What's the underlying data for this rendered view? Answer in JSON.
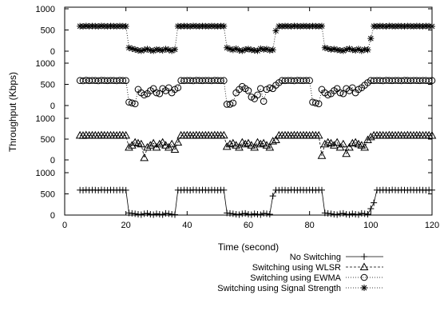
{
  "chart_data": {
    "type": "line",
    "xlabel": "Time (second)",
    "ylabel": "Throughput (Kbps)",
    "xlim": [
      0,
      120
    ],
    "xticks": [
      0,
      20,
      40,
      60,
      80,
      100,
      120
    ],
    "panel_ylim": [
      0,
      1000
    ],
    "panel_yticks": [
      0,
      500,
      1000
    ],
    "grid": false,
    "legend_position": "bottom-right",
    "series": [
      {
        "name": "Switching using Signal Strength",
        "marker": "star",
        "line": "dotted",
        "x": [
          5,
          6,
          7,
          8,
          9,
          10,
          11,
          12,
          13,
          14,
          15,
          16,
          17,
          18,
          19,
          20,
          21,
          22,
          23,
          24,
          25,
          26,
          27,
          28,
          29,
          30,
          31,
          32,
          33,
          34,
          35,
          36,
          37,
          38,
          39,
          40,
          41,
          42,
          43,
          44,
          45,
          46,
          47,
          48,
          49,
          50,
          51,
          52,
          53,
          54,
          55,
          56,
          57,
          58,
          59,
          60,
          61,
          62,
          63,
          64,
          65,
          66,
          67,
          68,
          69,
          70,
          71,
          72,
          73,
          74,
          75,
          76,
          77,
          78,
          79,
          80,
          81,
          82,
          83,
          84,
          85,
          86,
          87,
          88,
          89,
          90,
          91,
          92,
          93,
          94,
          95,
          96,
          97,
          98,
          99,
          100,
          101,
          102,
          103,
          104,
          105,
          106,
          107,
          108,
          109,
          110,
          111,
          112,
          113,
          114,
          115,
          116,
          117,
          118,
          119,
          120
        ],
        "y": [
          590,
          585,
          595,
          588,
          592,
          590,
          586,
          594,
          590,
          588,
          592,
          590,
          587,
          593,
          590,
          588,
          80,
          60,
          40,
          20,
          10,
          30,
          50,
          20,
          10,
          40,
          30,
          20,
          50,
          30,
          10,
          40,
          590,
          588,
          592,
          590,
          586,
          594,
          590,
          588,
          592,
          590,
          587,
          593,
          590,
          588,
          592,
          590,
          80,
          50,
          30,
          60,
          20,
          10,
          40,
          50,
          30,
          20,
          10,
          60,
          40,
          50,
          20,
          30,
          480,
          590,
          588,
          592,
          590,
          586,
          594,
          590,
          588,
          592,
          590,
          587,
          593,
          590,
          588,
          592,
          80,
          60,
          40,
          50,
          30,
          20,
          10,
          40,
          60,
          30,
          20,
          50,
          10,
          40,
          30,
          300,
          590,
          588,
          592,
          590,
          586,
          594,
          590,
          588,
          592,
          590,
          587,
          593,
          590,
          588,
          592,
          590,
          588,
          592,
          590,
          586
        ]
      },
      {
        "name": "Switching using EWMA",
        "marker": "circle",
        "line": "dotted",
        "x": [
          5,
          6,
          7,
          8,
          9,
          10,
          11,
          12,
          13,
          14,
          15,
          16,
          17,
          18,
          19,
          20,
          21,
          22,
          23,
          24,
          25,
          26,
          27,
          28,
          29,
          30,
          31,
          32,
          33,
          34,
          35,
          36,
          37,
          38,
          39,
          40,
          41,
          42,
          43,
          44,
          45,
          46,
          47,
          48,
          49,
          50,
          51,
          52,
          53,
          54,
          55,
          56,
          57,
          58,
          59,
          60,
          61,
          62,
          63,
          64,
          65,
          66,
          67,
          68,
          69,
          70,
          71,
          72,
          73,
          74,
          75,
          76,
          77,
          78,
          79,
          80,
          81,
          82,
          83,
          84,
          85,
          86,
          87,
          88,
          89,
          90,
          91,
          92,
          93,
          94,
          95,
          96,
          97,
          98,
          99,
          100,
          101,
          102,
          103,
          104,
          105,
          106,
          107,
          108,
          109,
          110,
          111,
          112,
          113,
          114,
          115,
          116,
          117,
          118,
          119,
          120
        ],
        "y": [
          590,
          585,
          595,
          588,
          592,
          590,
          586,
          594,
          590,
          588,
          592,
          590,
          587,
          593,
          590,
          588,
          80,
          60,
          40,
          380,
          300,
          250,
          280,
          350,
          400,
          300,
          280,
          400,
          350,
          420,
          300,
          380,
          420,
          590,
          588,
          592,
          590,
          586,
          594,
          590,
          588,
          592,
          590,
          587,
          593,
          590,
          588,
          590,
          30,
          30,
          60,
          300,
          380,
          450,
          400,
          350,
          200,
          160,
          250,
          400,
          100,
          380,
          420,
          400,
          480,
          540,
          590,
          588,
          592,
          590,
          586,
          594,
          590,
          588,
          592,
          590,
          80,
          60,
          40,
          380,
          300,
          250,
          280,
          350,
          400,
          300,
          280,
          400,
          350,
          420,
          300,
          380,
          420,
          480,
          540,
          590,
          588,
          592,
          590,
          586,
          594,
          590,
          588,
          592,
          590,
          587,
          593,
          590,
          588,
          592,
          590,
          588,
          592,
          590,
          586,
          590
        ]
      },
      {
        "name": "Switching using WLSR",
        "marker": "triangle",
        "line": "dashed",
        "x": [
          5,
          6,
          7,
          8,
          9,
          10,
          11,
          12,
          13,
          14,
          15,
          16,
          17,
          18,
          19,
          20,
          21,
          22,
          23,
          24,
          25,
          26,
          27,
          28,
          29,
          30,
          31,
          32,
          33,
          34,
          35,
          36,
          37,
          38,
          39,
          40,
          41,
          42,
          43,
          44,
          45,
          46,
          47,
          48,
          49,
          50,
          51,
          52,
          53,
          54,
          55,
          56,
          57,
          58,
          59,
          60,
          61,
          62,
          63,
          64,
          65,
          66,
          67,
          68,
          69,
          70,
          71,
          72,
          73,
          74,
          75,
          76,
          77,
          78,
          79,
          80,
          81,
          82,
          83,
          84,
          85,
          86,
          87,
          88,
          89,
          90,
          91,
          92,
          93,
          94,
          95,
          96,
          97,
          98,
          99,
          100,
          101,
          102,
          103,
          104,
          105,
          106,
          107,
          108,
          109,
          110,
          111,
          112,
          113,
          114,
          115,
          116,
          117,
          118,
          119,
          120
        ],
        "y": [
          590,
          585,
          595,
          588,
          592,
          590,
          586,
          594,
          590,
          588,
          592,
          590,
          587,
          593,
          590,
          588,
          300,
          350,
          420,
          400,
          380,
          50,
          300,
          350,
          400,
          300,
          380,
          420,
          350,
          300,
          380,
          250,
          420,
          590,
          588,
          592,
          590,
          586,
          594,
          590,
          588,
          592,
          590,
          587,
          593,
          590,
          588,
          592,
          320,
          380,
          400,
          350,
          300,
          420,
          380,
          400,
          350,
          300,
          420,
          380,
          400,
          350,
          300,
          450,
          480,
          590,
          588,
          592,
          590,
          586,
          594,
          590,
          588,
          592,
          590,
          587,
          593,
          590,
          588,
          100,
          380,
          420,
          400,
          350,
          420,
          300,
          380,
          150,
          300,
          400,
          420,
          380,
          350,
          300,
          480,
          550,
          590,
          588,
          592,
          590,
          586,
          594,
          590,
          588,
          592,
          590,
          587,
          593,
          590,
          588,
          592,
          590,
          588,
          592,
          590,
          586
        ]
      },
      {
        "name": "No Switching",
        "marker": "plus",
        "line": "solid",
        "x": [
          5,
          6,
          7,
          8,
          9,
          10,
          11,
          12,
          13,
          14,
          15,
          16,
          17,
          18,
          19,
          20,
          21,
          22,
          23,
          24,
          25,
          26,
          27,
          28,
          29,
          30,
          31,
          32,
          33,
          34,
          35,
          36,
          37,
          38,
          39,
          40,
          41,
          42,
          43,
          44,
          45,
          46,
          47,
          48,
          49,
          50,
          51,
          52,
          53,
          54,
          55,
          56,
          57,
          58,
          59,
          60,
          61,
          62,
          63,
          64,
          65,
          66,
          67,
          68,
          69,
          70,
          71,
          72,
          73,
          74,
          75,
          76,
          77,
          78,
          79,
          80,
          81,
          82,
          83,
          84,
          85,
          86,
          87,
          88,
          89,
          90,
          91,
          92,
          93,
          94,
          95,
          96,
          97,
          98,
          99,
          100,
          101,
          102,
          103,
          104,
          105,
          106,
          107,
          108,
          109,
          110,
          111,
          112,
          113,
          114,
          115,
          116,
          117,
          118,
          119,
          120
        ],
        "y": [
          590,
          585,
          595,
          588,
          592,
          590,
          586,
          594,
          590,
          588,
          592,
          590,
          587,
          593,
          590,
          588,
          50,
          40,
          30,
          20,
          10,
          30,
          40,
          20,
          10,
          30,
          20,
          10,
          40,
          30,
          20,
          10,
          590,
          588,
          592,
          590,
          586,
          594,
          590,
          588,
          592,
          590,
          587,
          593,
          590,
          588,
          592,
          590,
          50,
          40,
          30,
          20,
          10,
          30,
          40,
          20,
          10,
          30,
          20,
          10,
          40,
          30,
          20,
          450,
          590,
          588,
          592,
          590,
          586,
          594,
          590,
          588,
          592,
          590,
          587,
          593,
          590,
          588,
          592,
          590,
          50,
          40,
          30,
          20,
          10,
          30,
          40,
          20,
          10,
          30,
          20,
          10,
          40,
          30,
          20,
          150,
          290,
          590,
          588,
          592,
          590,
          586,
          594,
          590,
          588,
          592,
          590,
          587,
          593,
          590,
          588,
          592,
          590,
          588,
          592,
          590
        ]
      }
    ]
  }
}
